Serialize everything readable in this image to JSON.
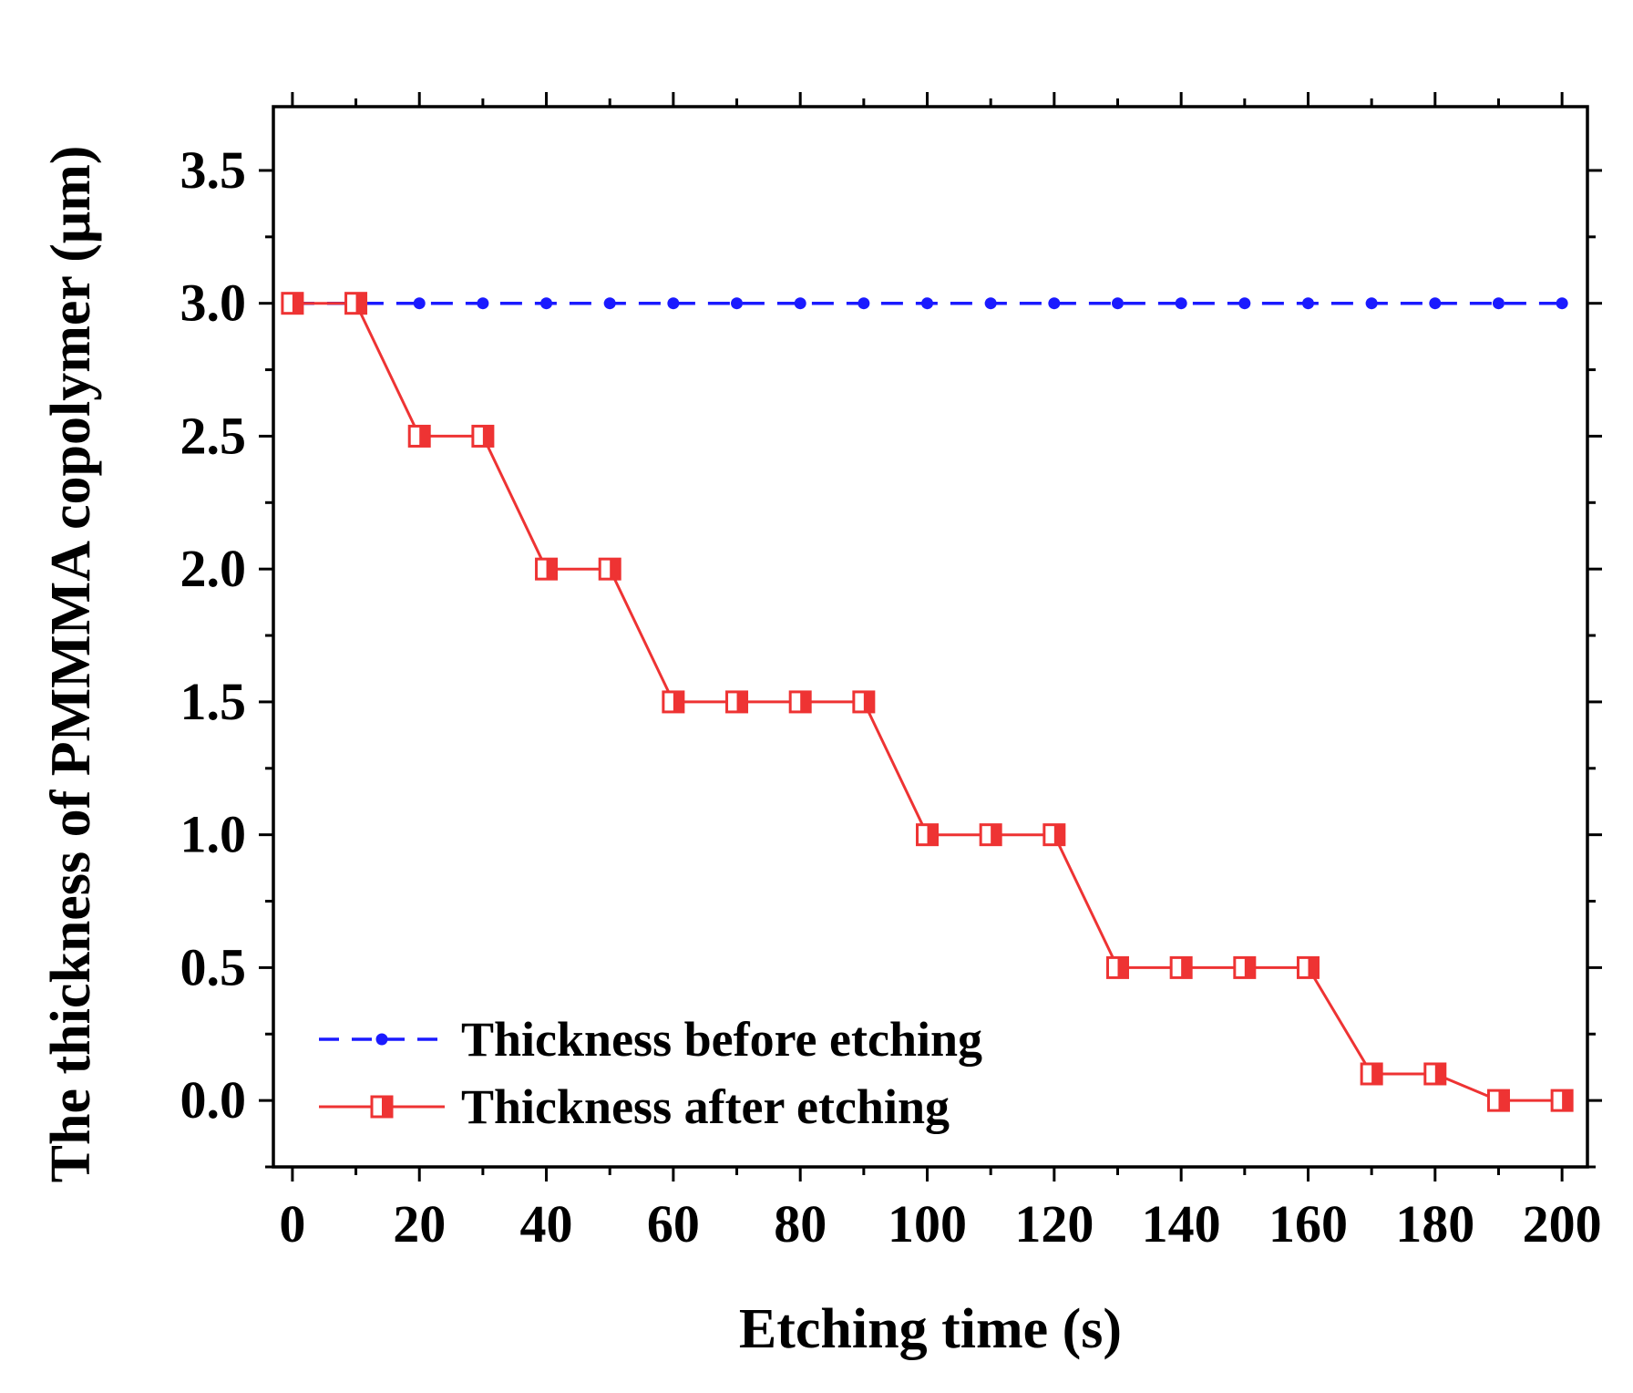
{
  "chart_data": {
    "type": "line",
    "title": "",
    "xlabel": "Etching time (s)",
    "ylabel": "The thickness of PMMMA copolymer (μm)",
    "xlim": [
      -3,
      204
    ],
    "ylim": [
      -0.25,
      3.74
    ],
    "xticks": [
      0,
      20,
      40,
      60,
      80,
      100,
      120,
      140,
      160,
      180,
      200
    ],
    "xtick_labels": [
      "0",
      "20",
      "40",
      "60",
      "80",
      "100",
      "120",
      "140",
      "160",
      "180",
      "200"
    ],
    "yticks": [
      0.0,
      0.5,
      1.0,
      1.5,
      2.0,
      2.5,
      3.0,
      3.5
    ],
    "ytick_labels": [
      "0.0",
      "0.5",
      "1.0",
      "1.5",
      "2.0",
      "2.5",
      "3.0",
      "3.5"
    ],
    "legend_position": "bottom-left",
    "grid": false,
    "series": [
      {
        "name": "Thickness before etching",
        "color": "#1a1aff",
        "line_style": "dashed",
        "marker": "circle",
        "x": [
          0,
          10,
          20,
          30,
          40,
          50,
          60,
          70,
          80,
          90,
          100,
          110,
          120,
          130,
          140,
          150,
          160,
          170,
          180,
          190,
          200
        ],
        "values": [
          3.0,
          3.0,
          3.0,
          3.0,
          3.0,
          3.0,
          3.0,
          3.0,
          3.0,
          3.0,
          3.0,
          3.0,
          3.0,
          3.0,
          3.0,
          3.0,
          3.0,
          3.0,
          3.0,
          3.0,
          3.0
        ]
      },
      {
        "name": "Thickness after etching",
        "color": "#ee3333",
        "line_style": "solid",
        "marker": "half-filled-square",
        "x": [
          0,
          10,
          20,
          30,
          40,
          50,
          60,
          70,
          80,
          90,
          100,
          110,
          120,
          130,
          140,
          150,
          160,
          170,
          180,
          190,
          200
        ],
        "values": [
          3.0,
          3.0,
          2.5,
          2.5,
          2.0,
          2.0,
          1.5,
          1.5,
          1.5,
          1.5,
          1.0,
          1.0,
          1.0,
          0.5,
          0.5,
          0.5,
          0.5,
          0.1,
          0.1,
          0.0,
          0.0
        ]
      }
    ]
  }
}
